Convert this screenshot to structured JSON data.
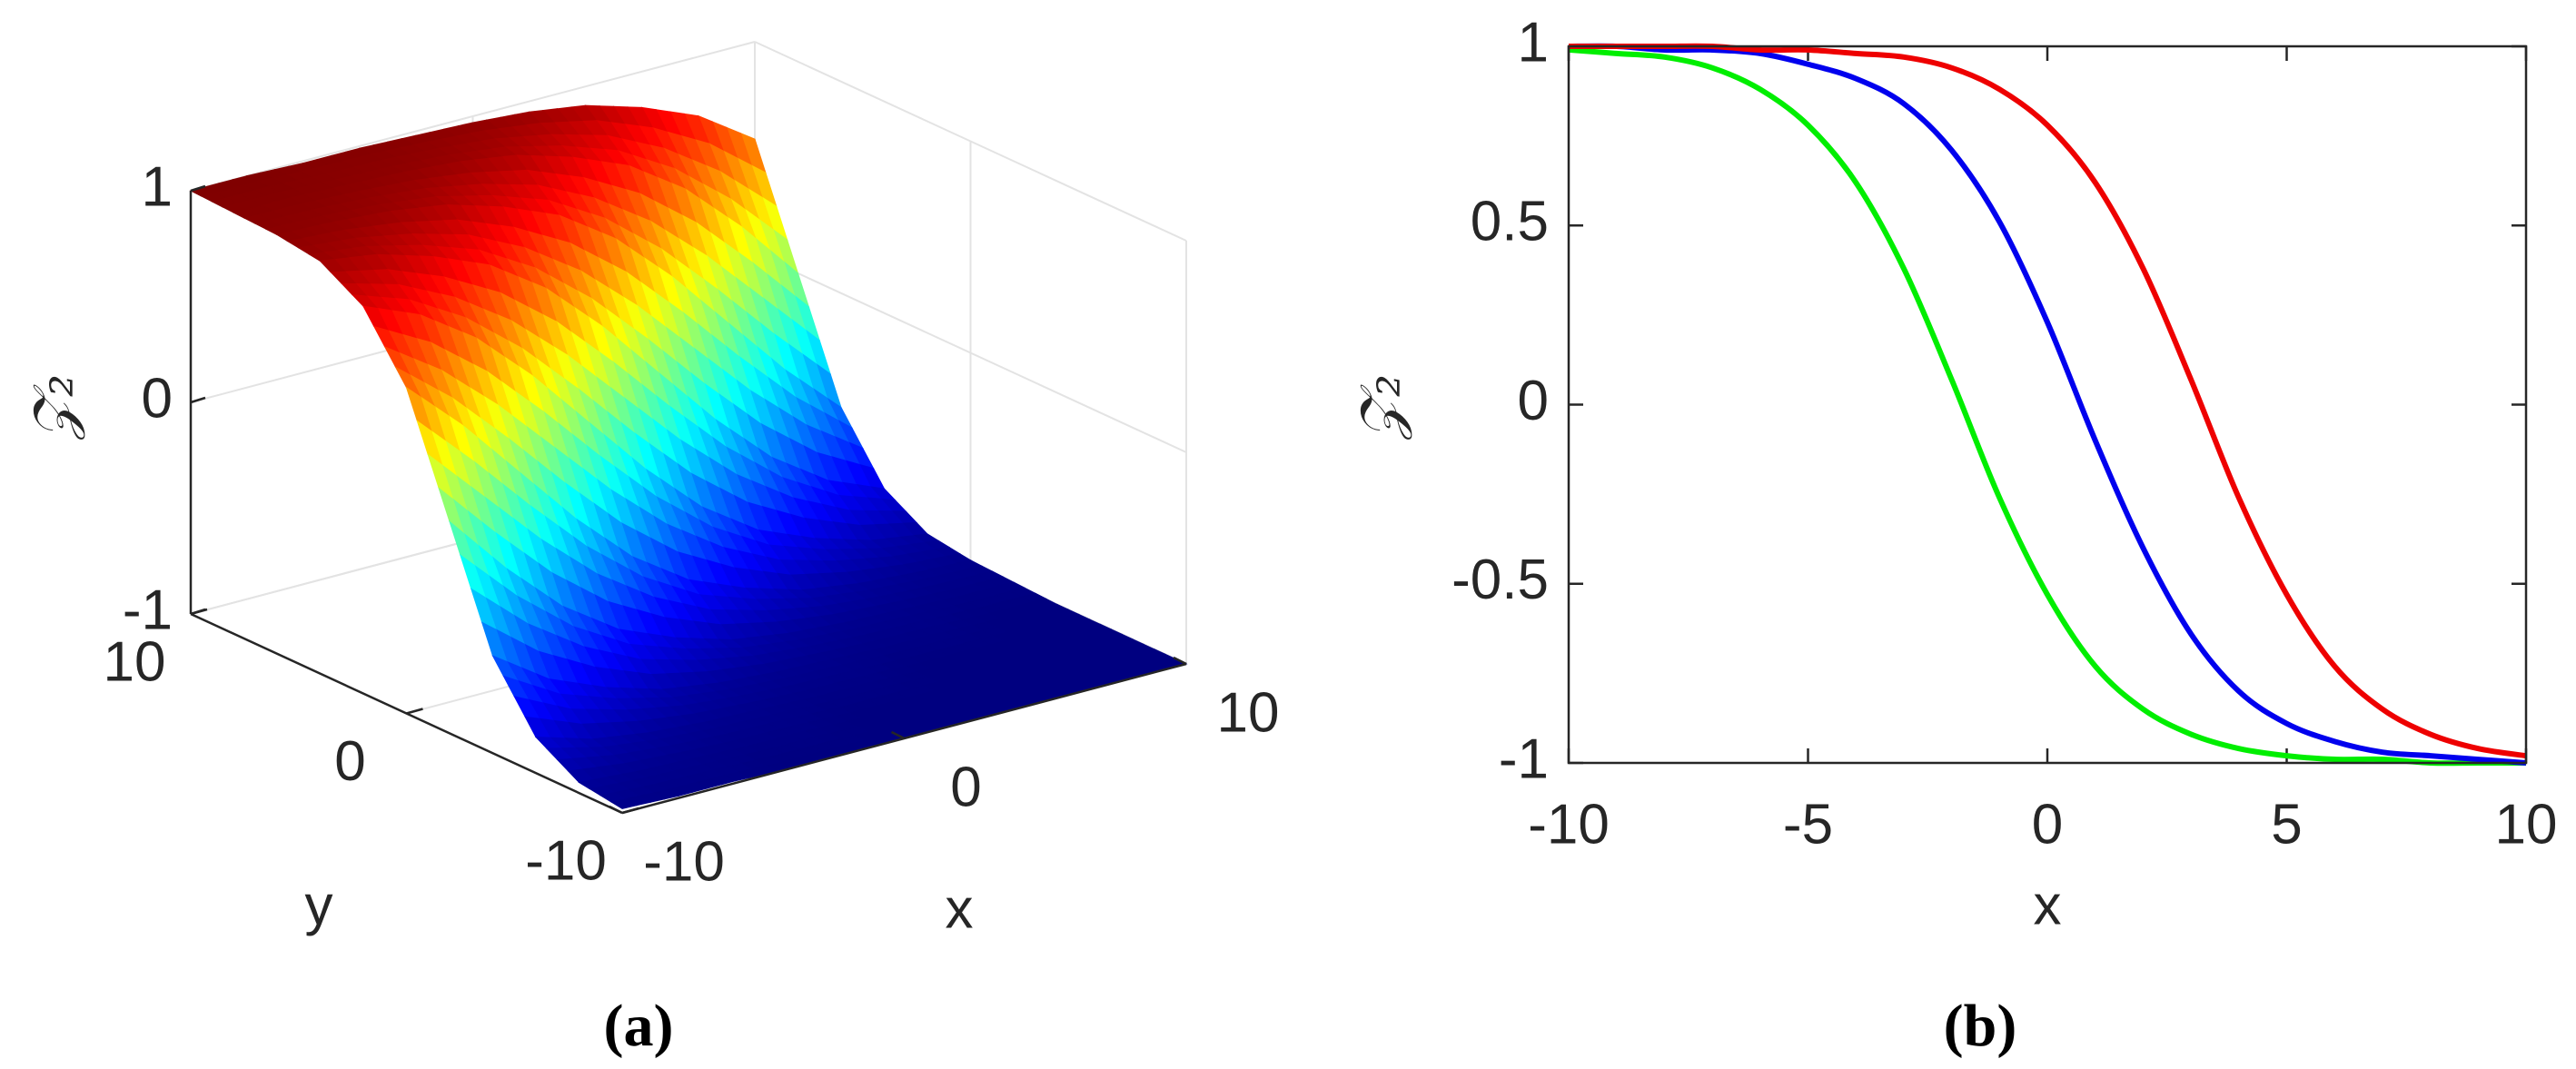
{
  "chart_data": [
    {
      "type": "surface",
      "caption": "(a)",
      "xlabel": "x",
      "ylabel": "y",
      "zlabel": "𝒵₂",
      "x": [
        -10,
        -8,
        -6,
        -4,
        -2,
        0,
        2,
        4,
        6,
        8,
        10
      ],
      "y": [
        -10,
        -8,
        -6,
        -4,
        -2,
        0,
        2,
        4,
        6,
        8,
        10
      ],
      "z": [
        [
          -0.98,
          -0.99,
          -0.99,
          -1,
          -1,
          -1,
          -1,
          -1,
          -1,
          -1,
          -1
        ],
        [
          -0.95,
          -0.97,
          -0.98,
          -0.99,
          -0.99,
          -1,
          -1,
          -1,
          -1,
          -1,
          -1
        ],
        [
          -0.83,
          -0.91,
          -0.95,
          -0.97,
          -0.98,
          -0.99,
          -0.99,
          -1,
          -1,
          -1,
          -1
        ],
        [
          -0.54,
          -0.72,
          -0.83,
          -0.91,
          -0.95,
          -0.97,
          -0.98,
          -0.99,
          -0.99,
          -1,
          -1
        ],
        [
          0,
          -0.29,
          -0.54,
          -0.72,
          -0.83,
          -0.91,
          -0.95,
          -0.97,
          -0.98,
          -0.99,
          -0.99
        ],
        [
          0.54,
          0.29,
          0,
          -0.29,
          -0.54,
          -0.72,
          -0.83,
          -0.91,
          -0.95,
          -0.97,
          -0.98
        ],
        [
          0.83,
          0.72,
          0.54,
          0.29,
          0,
          -0.29,
          -0.54,
          -0.72,
          -0.83,
          -0.91,
          -0.95
        ],
        [
          0.95,
          0.91,
          0.83,
          0.72,
          0.54,
          0.29,
          0,
          -0.29,
          -0.54,
          -0.72,
          -0.83
        ],
        [
          0.98,
          0.97,
          0.95,
          0.91,
          0.83,
          0.72,
          0.54,
          0.29,
          0,
          -0.29,
          -0.54
        ],
        [
          0.99,
          0.99,
          0.98,
          0.97,
          0.95,
          0.91,
          0.83,
          0.72,
          0.54,
          0.29,
          0
        ],
        [
          1,
          1,
          0.99,
          0.99,
          0.98,
          0.97,
          0.95,
          0.91,
          0.83,
          0.72,
          0.54
        ]
      ],
      "xlim": [
        -10,
        10
      ],
      "ylim": [
        -10,
        10
      ],
      "zlim": [
        -1,
        1
      ],
      "xticks": [
        -10,
        0,
        10
      ],
      "yticks": [
        -10,
        0,
        10
      ],
      "zticks": [
        -1,
        0,
        1
      ],
      "colormap": "jet",
      "grid": true
    },
    {
      "type": "line",
      "caption": "(b)",
      "xlabel": "x",
      "ylabel": "𝒵₂",
      "x": [
        -10,
        -9,
        -8,
        -7,
        -6,
        -5,
        -4,
        -3,
        -2,
        -1,
        0,
        1,
        2,
        3,
        4,
        5,
        6,
        7,
        8,
        9,
        10
      ],
      "series": [
        {
          "color": "#00ee00",
          "values": [
            0.99,
            0.98,
            0.97,
            0.94,
            0.88,
            0.78,
            0.62,
            0.38,
            0.07,
            -0.26,
            -0.53,
            -0.73,
            -0.85,
            -0.92,
            -0.96,
            -0.98,
            -0.99,
            -0.99,
            -1.0,
            -1.0,
            -1.0
          ]
        },
        {
          "color": "#0000ee",
          "values": [
            1.0,
            1.0,
            0.99,
            0.99,
            0.98,
            0.95,
            0.91,
            0.84,
            0.71,
            0.51,
            0.23,
            -0.1,
            -0.4,
            -0.64,
            -0.8,
            -0.89,
            -0.94,
            -0.97,
            -0.98,
            -0.99,
            -1.0
          ]
        },
        {
          "color": "#ee0000",
          "values": [
            1.0,
            1.0,
            1.0,
            1.0,
            0.99,
            0.99,
            0.98,
            0.97,
            0.94,
            0.88,
            0.78,
            0.62,
            0.38,
            0.07,
            -0.26,
            -0.53,
            -0.73,
            -0.85,
            -0.92,
            -0.96,
            -0.98
          ]
        }
      ],
      "xlim": [
        -10,
        10
      ],
      "ylim": [
        -1,
        1
      ],
      "xticks": [
        -10,
        -5,
        0,
        5,
        10
      ],
      "yticks": [
        -1,
        -0.5,
        0,
        0.5,
        1
      ]
    }
  ]
}
